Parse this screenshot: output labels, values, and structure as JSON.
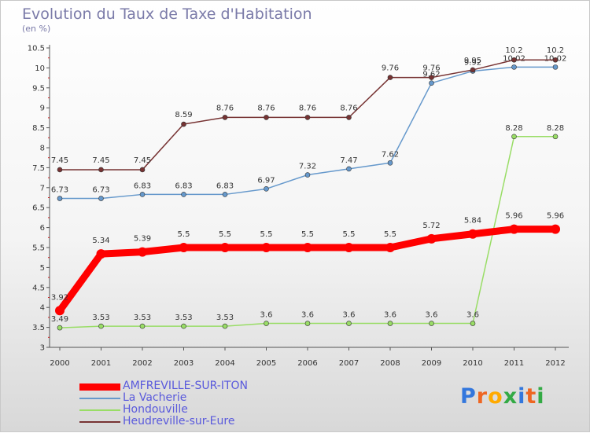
{
  "chart_data": {
    "type": "line",
    "title": "Evolution du Taux de Taxe d'Habitation",
    "subtitle": "(en %)",
    "x": [
      "2000",
      "2001",
      "2002",
      "2003",
      "2004",
      "2005",
      "2006",
      "2007",
      "2008",
      "2009",
      "2010",
      "2011",
      "2012"
    ],
    "ylim": [
      3,
      10.5
    ],
    "yticks": [
      "3",
      "3.5",
      "4",
      "4.5",
      "5",
      "5.5",
      "6",
      "6.5",
      "7",
      "7.5",
      "8",
      "8.5",
      "9",
      "9.5",
      "10",
      "10.5"
    ],
    "grid": false,
    "legend_position": "bottom-left",
    "series": [
      {
        "name": "AMFREVILLE-SUR-ITON",
        "color": "#ff0000",
        "values": [
          3.92,
          5.34,
          5.39,
          5.5,
          5.5,
          5.5,
          5.5,
          5.5,
          5.5,
          5.72,
          5.84,
          5.96,
          5.96
        ],
        "labels": [
          "3.92",
          "5.34",
          "5.39",
          "5.5",
          "5.5",
          "5.5",
          "5.5",
          "5.5",
          "5.5",
          "5.72",
          "5.84",
          "5.96",
          "5.96"
        ]
      },
      {
        "name": "La Vacherie",
        "color": "#6699cc",
        "values": [
          6.73,
          6.73,
          6.83,
          6.83,
          6.83,
          6.97,
          7.32,
          7.47,
          7.62,
          9.62,
          9.92,
          10.02,
          10.02
        ],
        "labels": [
          "6.73",
          "6.73",
          "6.83",
          "6.83",
          "6.83",
          "6.97",
          "7.32",
          "7.47",
          "7.62",
          "9.62",
          "9.92",
          "10.02",
          "10.02"
        ]
      },
      {
        "name": "Hondouville",
        "color": "#99dd66",
        "values": [
          3.49,
          3.53,
          3.53,
          3.53,
          3.53,
          3.6,
          3.6,
          3.6,
          3.6,
          3.6,
          3.6,
          8.28,
          8.28
        ],
        "labels": [
          "3.49",
          "3.53",
          "3.53",
          "3.53",
          "3.53",
          "3.6",
          "3.6",
          "3.6",
          "3.6",
          "3.6",
          "3.6",
          "8.28",
          "8.28"
        ]
      },
      {
        "name": "Heudreville-sur-Eure",
        "color": "#773333",
        "values": [
          7.45,
          7.45,
          7.45,
          8.59,
          8.76,
          8.76,
          8.76,
          8.76,
          9.76,
          9.76,
          9.95,
          10.2,
          10.2
        ],
        "labels": [
          "7.45",
          "7.45",
          "7.45",
          "8.59",
          "8.76",
          "8.76",
          "8.76",
          "8.76",
          "9.76",
          "9.76",
          "9.95",
          "10.2",
          "10.2"
        ]
      }
    ]
  },
  "brand": {
    "text": "Proxiti",
    "letter_colors": [
      "#3377dd",
      "#ee6622",
      "#ffaa00",
      "#33aa44",
      "#3377dd",
      "#ee6622",
      "#33aa44"
    ]
  }
}
